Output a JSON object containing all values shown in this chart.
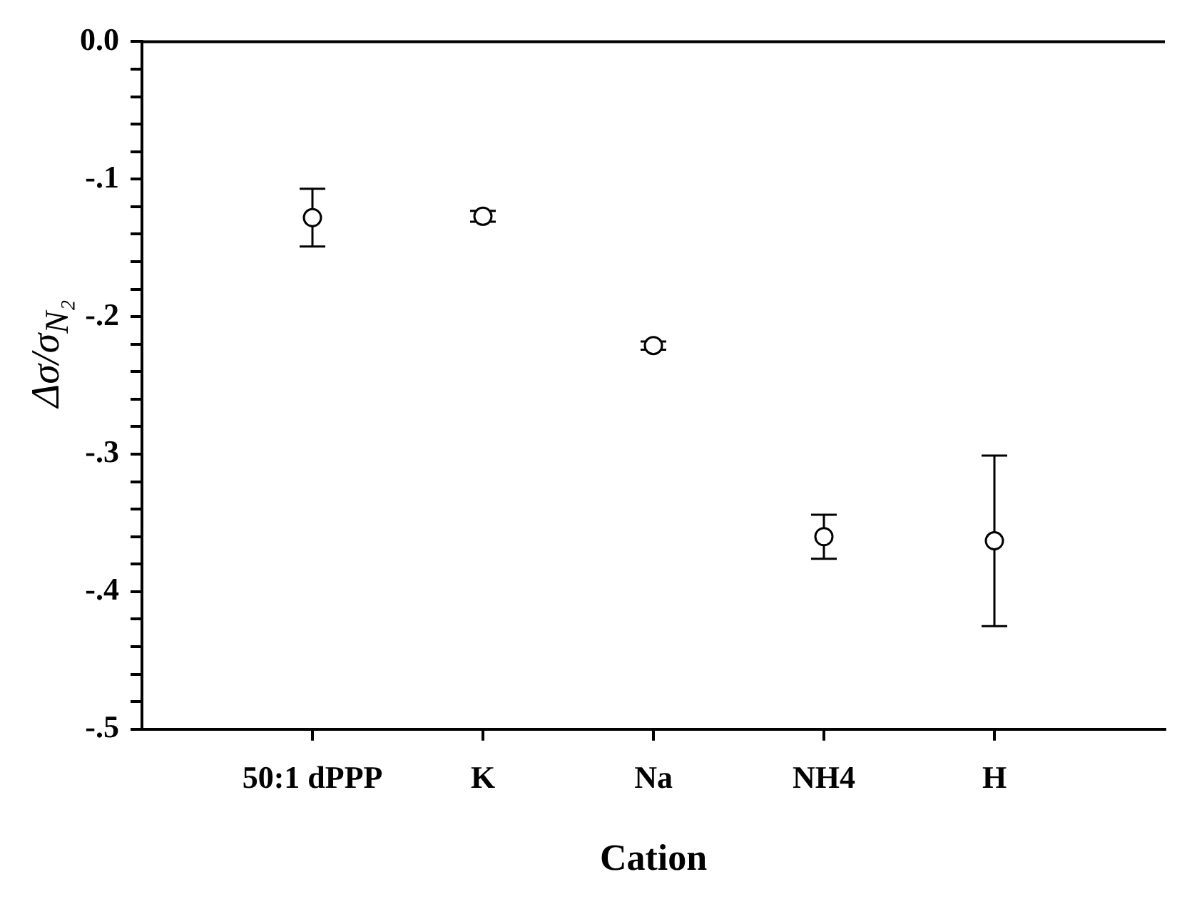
{
  "chart_data": {
    "type": "scatter",
    "xlabel": "Cation",
    "ylabel": "Δσ/σ$_{N₂}$",
    "categories": [
      "50:1 dPPP",
      "K",
      "Na",
      "NH4",
      "H"
    ],
    "series": [
      {
        "color": "#000000",
        "values": [
          -0.128,
          -0.127,
          -0.221,
          -0.36,
          -0.363
        ],
        "errors": [
          0.021,
          0.004,
          0.003,
          0.016,
          0.062
        ]
      }
    ],
    "ylim": [
      -0.5,
      0
    ],
    "yticks": [
      {
        "value": 0,
        "label": "0.0"
      },
      {
        "value": -0.02,
        "label": null
      },
      {
        "value": -0.04,
        "label": null
      },
      {
        "value": -0.06,
        "label": null
      },
      {
        "value": -0.08,
        "label": null
      },
      {
        "value": -0.1,
        "label": "-.1"
      },
      {
        "value": -0.12,
        "label": null
      },
      {
        "value": -0.14,
        "label": null
      },
      {
        "value": -0.16,
        "label": null
      },
      {
        "value": -0.18,
        "label": null
      },
      {
        "value": -0.2,
        "label": "-.2"
      },
      {
        "value": -0.22,
        "label": null
      },
      {
        "value": -0.24,
        "label": null
      },
      {
        "value": -0.26,
        "label": null
      },
      {
        "value": -0.28,
        "label": null
      },
      {
        "value": -0.3,
        "label": "-.3"
      },
      {
        "value": -0.32,
        "label": null
      },
      {
        "value": -0.34,
        "label": null
      },
      {
        "value": -0.36,
        "label": null
      },
      {
        "value": -0.38,
        "label": null
      },
      {
        "value": -0.4,
        "label": "-.4"
      },
      {
        "value": -0.42,
        "label": null
      },
      {
        "value": -0.44,
        "label": null
      },
      {
        "value": -0.46,
        "label": null
      },
      {
        "value": -0.48,
        "label": null
      },
      {
        "value": -0.5,
        "label": "-.5"
      }
    ],
    "grid": false,
    "legend": false,
    "marker": "circle"
  }
}
